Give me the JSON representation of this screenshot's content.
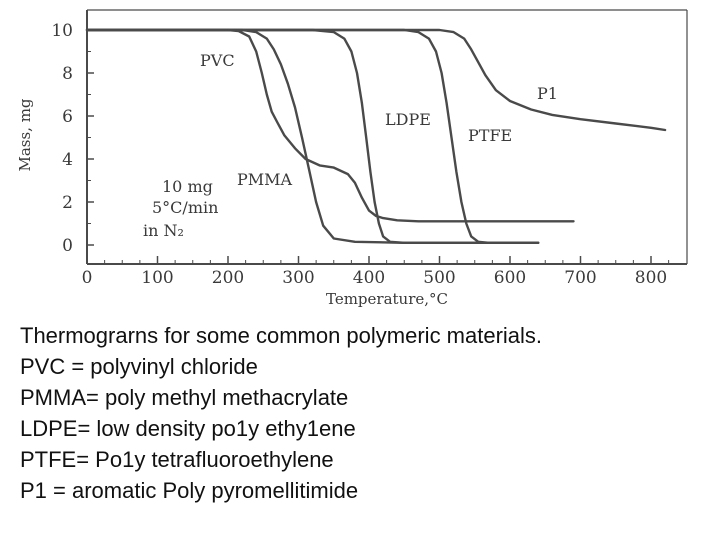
{
  "chart_data": {
    "type": "line",
    "xlabel": "Temperature,°C",
    "ylabel": "Mass, mg",
    "xlim": [
      0,
      820
    ],
    "ylim": [
      -0.3,
      10.4
    ],
    "x_ticks": [
      "0",
      "100",
      "200",
      "300",
      "400",
      "500",
      "600",
      "700",
      "800"
    ],
    "y_ticks": [
      "0",
      "2",
      "4",
      "6",
      "8",
      "10"
    ],
    "grid": false,
    "annotation": [
      "10 mg",
      "5°C/min",
      "in N₂"
    ],
    "series": [
      {
        "name": "PVC",
        "x": [
          0,
          200,
          215,
          230,
          240,
          248,
          255,
          262,
          270,
          280,
          295,
          310,
          330,
          350,
          370,
          380,
          390,
          400,
          410,
          420,
          440,
          470,
          520,
          580,
          640,
          690
        ],
        "y": [
          10,
          10,
          9.95,
          9.7,
          9,
          8,
          7,
          6.2,
          5.7,
          5.1,
          4.5,
          4.0,
          3.7,
          3.6,
          3.3,
          2.9,
          2.2,
          1.6,
          1.35,
          1.25,
          1.15,
          1.1,
          1.1,
          1.1,
          1.1,
          1.1
        ]
      },
      {
        "name": "PMMA",
        "x": [
          0,
          220,
          240,
          255,
          265,
          275,
          285,
          295,
          305,
          315,
          325,
          335,
          350,
          380,
          450,
          550,
          640
        ],
        "y": [
          10,
          10,
          9.9,
          9.6,
          9.1,
          8.4,
          7.5,
          6.4,
          5.0,
          3.5,
          2.0,
          0.9,
          0.3,
          0.15,
          0.1,
          0.1,
          0.1
        ]
      },
      {
        "name": "LDPE",
        "x": [
          0,
          320,
          350,
          365,
          375,
          383,
          390,
          396,
          402,
          408,
          414,
          420,
          430,
          450,
          520,
          600,
          640
        ],
        "y": [
          10,
          10,
          9.9,
          9.6,
          9.0,
          8.0,
          6.6,
          5.0,
          3.4,
          2.0,
          1.0,
          0.4,
          0.15,
          0.1,
          0.1,
          0.1,
          0.1
        ]
      },
      {
        "name": "PTFE",
        "x": [
          0,
          450,
          470,
          485,
          495,
          503,
          510,
          517,
          524,
          531,
          538,
          545,
          555,
          570,
          600,
          640
        ],
        "y": [
          10,
          10,
          9.9,
          9.6,
          9.0,
          8.0,
          6.6,
          5.0,
          3.4,
          2.0,
          1.0,
          0.4,
          0.15,
          0.1,
          0.1,
          0.1
        ]
      },
      {
        "name": "P1",
        "x": [
          0,
          500,
          520,
          535,
          545,
          555,
          565,
          580,
          600,
          630,
          660,
          700,
          750,
          800,
          820
        ],
        "y": [
          10,
          10,
          9.9,
          9.6,
          9.1,
          8.5,
          7.9,
          7.2,
          6.7,
          6.3,
          6.05,
          5.85,
          5.65,
          5.45,
          5.35
        ]
      }
    ],
    "series_labels": [
      "PVC",
      "PMMA",
      "LDPE",
      "PTFE",
      "P1"
    ]
  },
  "caption": {
    "lines": [
      "Thermograrns for some common polymeric materials.",
      "PVC = polyvinyl chloride",
      "PMMA= poly methyl methacrylate",
      "LDPE= low density po1y ethy1ene",
      "PTFE= Po1y tetrafluoroethylene",
      "P1 = aromatic Poly pyromellitimide"
    ]
  },
  "colors": {
    "line": "#4a4a4a",
    "axis": "#4a4a4a",
    "text": "#3a3a3a"
  }
}
